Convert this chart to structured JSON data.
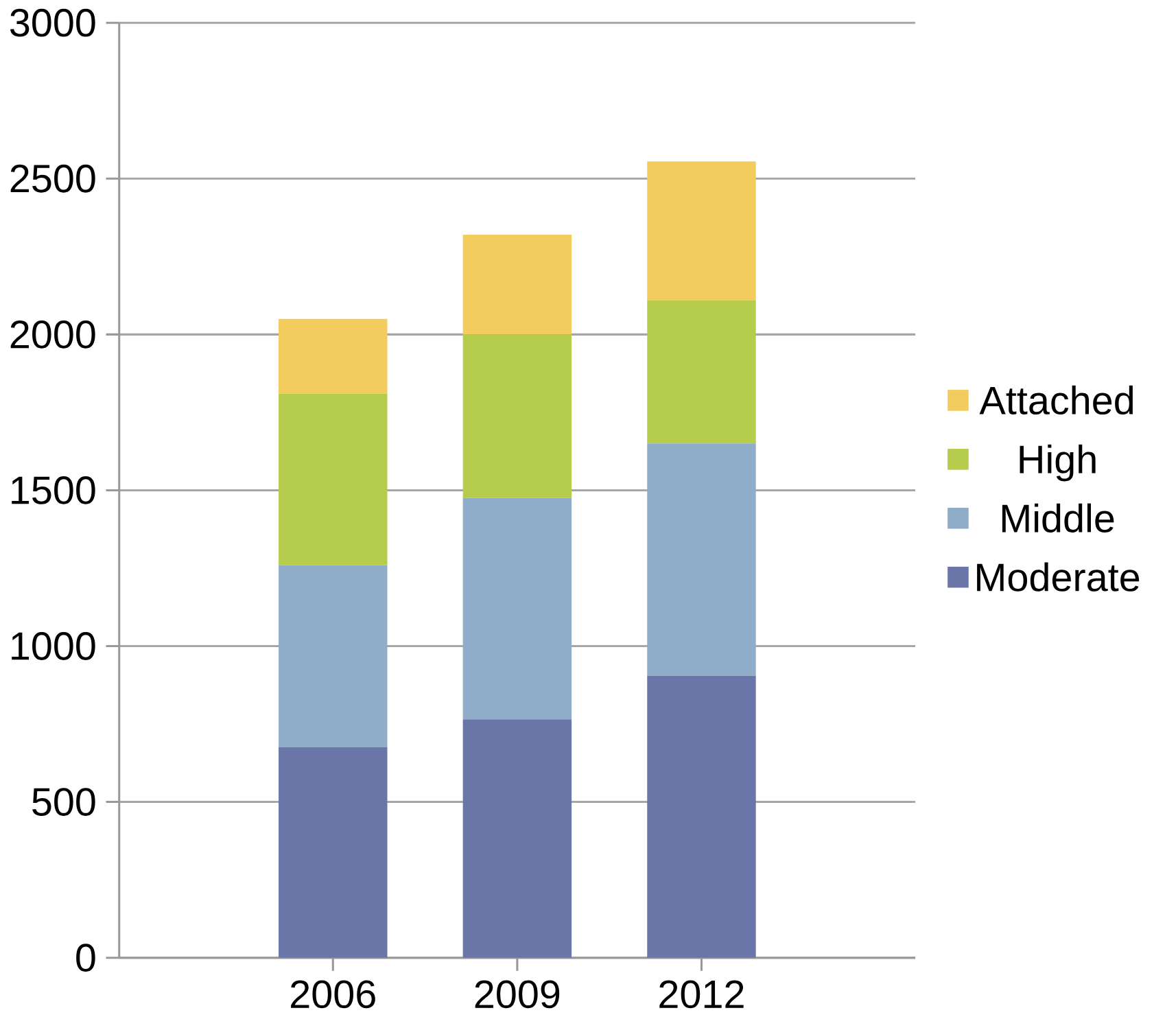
{
  "chart_data": {
    "type": "bar",
    "stacked": true,
    "categories": [
      "2006",
      "2009",
      "2012"
    ],
    "series": [
      {
        "name": "Moderate",
        "color": "#6a75a8",
        "values": [
          675,
          765,
          905
        ]
      },
      {
        "name": "Middle",
        "color": "#8fadc8",
        "values": [
          585,
          710,
          745
        ]
      },
      {
        "name": "High",
        "color": "#b5cc4c",
        "values": [
          550,
          525,
          460
        ]
      },
      {
        "name": "Attached",
        "color": "#f2cc5c",
        "values": [
          240,
          320,
          445
        ]
      }
    ],
    "ylim": [
      0,
      3000
    ],
    "yticks": [
      0,
      500,
      1000,
      1500,
      2000,
      2500,
      3000
    ],
    "grid": "y",
    "legend": "right"
  }
}
